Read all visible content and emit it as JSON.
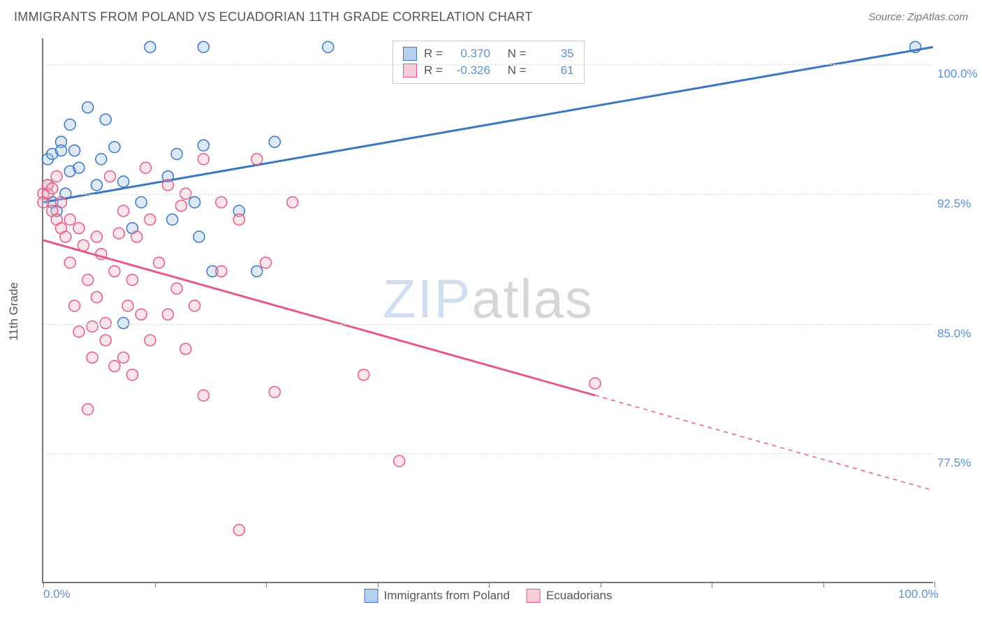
{
  "title": "IMMIGRANTS FROM POLAND VS ECUADORIAN 11TH GRADE CORRELATION CHART",
  "source": "Source: ZipAtlas.com",
  "watermark": {
    "part1": "ZIP",
    "part2": "atlas"
  },
  "ylabel": "11th Grade",
  "chart": {
    "type": "scatter",
    "background_color": "#ffffff",
    "grid_color": "#dcdcdc",
    "axis_color": "#777777",
    "xlim": [
      0,
      100
    ],
    "ylim": [
      70,
      101.5
    ],
    "x_ticks": [
      0,
      12.5,
      25,
      37.5,
      50,
      62.5,
      75,
      87.5,
      100
    ],
    "x_tick_labels": {
      "0": "0.0%",
      "100": "100.0%"
    },
    "y_gridlines": [
      77.5,
      85.0,
      92.5,
      100.0
    ],
    "y_tick_labels": {
      "77.5": "77.5%",
      "85.0": "85.0%",
      "92.5": "92.5%",
      "100.0": "100.0%"
    },
    "marker_radius": 8,
    "marker_stroke_width": 1.5,
    "marker_fill_opacity": 0.35,
    "line_width": 3,
    "series": [
      {
        "name": "Immigrants from Poland",
        "color_stroke": "#3a76c4",
        "color_fill": "#9fc0e8",
        "R": "0.370",
        "N": "35",
        "trend": {
          "x1": 0,
          "y1": 92.0,
          "x2": 100,
          "y2": 101.0,
          "solid_end_x": 100
        },
        "points": [
          [
            0.5,
            93.0
          ],
          [
            0.5,
            94.5
          ],
          [
            1.0,
            92.0
          ],
          [
            1.0,
            94.8
          ],
          [
            1.5,
            91.5
          ],
          [
            2.0,
            95.5
          ],
          [
            2.0,
            95.0
          ],
          [
            2.5,
            92.5
          ],
          [
            3.0,
            93.8
          ],
          [
            3.0,
            96.5
          ],
          [
            3.5,
            95.0
          ],
          [
            4.0,
            94.0
          ],
          [
            5.0,
            97.5
          ],
          [
            6.0,
            93.0
          ],
          [
            6.5,
            94.5
          ],
          [
            7.0,
            96.8
          ],
          [
            8.0,
            95.2
          ],
          [
            9.0,
            93.2
          ],
          [
            9.0,
            85.0
          ],
          [
            10.0,
            90.5
          ],
          [
            11.0,
            92.0
          ],
          [
            12.0,
            101.0
          ],
          [
            14.0,
            93.5
          ],
          [
            14.5,
            91.0
          ],
          [
            15.0,
            94.8
          ],
          [
            17.0,
            92.0
          ],
          [
            17.5,
            90.0
          ],
          [
            18.0,
            95.3
          ],
          [
            18.0,
            101.0
          ],
          [
            19.0,
            88.0
          ],
          [
            22.0,
            91.5
          ],
          [
            24.0,
            88.0
          ],
          [
            26.0,
            95.5
          ],
          [
            32.0,
            101.0
          ],
          [
            98.0,
            101.0
          ]
        ]
      },
      {
        "name": "Ecuadorians",
        "color_stroke": "#e65a82",
        "color_fill": "#f3b5c6",
        "R": "-0.326",
        "N": "61",
        "trend": {
          "x1": 0,
          "y1": 89.8,
          "x2": 100,
          "y2": 75.3,
          "solid_end_x": 62
        },
        "points": [
          [
            0.0,
            92.5
          ],
          [
            0.0,
            92.0
          ],
          [
            0.5,
            92.5
          ],
          [
            0.5,
            93.0
          ],
          [
            1.0,
            91.5
          ],
          [
            1.0,
            92.8
          ],
          [
            1.5,
            91.0
          ],
          [
            1.5,
            93.5
          ],
          [
            2.0,
            90.5
          ],
          [
            2.0,
            92.0
          ],
          [
            2.5,
            90.0
          ],
          [
            3.0,
            91.0
          ],
          [
            3.0,
            88.5
          ],
          [
            3.5,
            86.0
          ],
          [
            4.0,
            90.5
          ],
          [
            4.0,
            84.5
          ],
          [
            4.5,
            89.5
          ],
          [
            5.0,
            87.5
          ],
          [
            5.0,
            80.0
          ],
          [
            5.5,
            83.0
          ],
          [
            5.5,
            84.8
          ],
          [
            6.0,
            90.0
          ],
          [
            6.0,
            86.5
          ],
          [
            6.5,
            89.0
          ],
          [
            7.0,
            84.0
          ],
          [
            7.0,
            85.0
          ],
          [
            7.5,
            93.5
          ],
          [
            8.0,
            88.0
          ],
          [
            8.0,
            82.5
          ],
          [
            8.5,
            90.2
          ],
          [
            9.0,
            83.0
          ],
          [
            9.0,
            91.5
          ],
          [
            9.5,
            86.0
          ],
          [
            10.0,
            87.5
          ],
          [
            10.0,
            82.0
          ],
          [
            10.5,
            90.0
          ],
          [
            11.0,
            85.5
          ],
          [
            11.5,
            94.0
          ],
          [
            12.0,
            91.0
          ],
          [
            12.0,
            84.0
          ],
          [
            13.0,
            88.5
          ],
          [
            14.0,
            93.0
          ],
          [
            14.0,
            85.5
          ],
          [
            15.0,
            87.0
          ],
          [
            15.5,
            91.8
          ],
          [
            16.0,
            92.5
          ],
          [
            16.0,
            83.5
          ],
          [
            17.0,
            86.0
          ],
          [
            18.0,
            94.5
          ],
          [
            18.0,
            80.8
          ],
          [
            20.0,
            88.0
          ],
          [
            20.0,
            92.0
          ],
          [
            22.0,
            91.0
          ],
          [
            22.0,
            73.0
          ],
          [
            24.0,
            94.5
          ],
          [
            25.0,
            88.5
          ],
          [
            26.0,
            81.0
          ],
          [
            28.0,
            92.0
          ],
          [
            36.0,
            82.0
          ],
          [
            40.0,
            77.0
          ],
          [
            62.0,
            81.5
          ]
        ]
      }
    ],
    "legend_top": {
      "rows": [
        {
          "swatch": "blue",
          "r_label": "R =",
          "r_value": "0.370",
          "n_label": "N =",
          "n_value": "35"
        },
        {
          "swatch": "pink",
          "r_label": "R =",
          "r_value": "-0.326",
          "n_label": "N =",
          "n_value": "61"
        }
      ]
    },
    "legend_bottom": [
      {
        "swatch": "blue",
        "label": "Immigrants from Poland"
      },
      {
        "swatch": "pink",
        "label": "Ecuadorians"
      }
    ]
  }
}
